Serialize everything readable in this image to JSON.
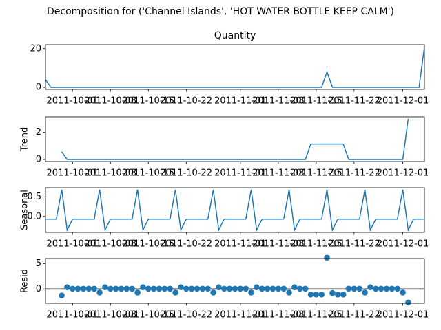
{
  "suptitle": "Decomposition for ('Channel Islands', 'HOT WATER BOTTLE KEEP CALM')",
  "chart_data": [
    {
      "type": "line",
      "title": "Quantity",
      "color": "#1f77b4",
      "x": [
        "2011-09-26",
        "2011-09-27",
        "2011-09-28",
        "2011-09-29",
        "2011-09-30",
        "2011-10-01",
        "2011-10-02",
        "2011-10-03",
        "2011-10-04",
        "2011-10-05",
        "2011-10-06",
        "2011-10-07",
        "2011-10-08",
        "2011-10-09",
        "2011-10-10",
        "2011-10-11",
        "2011-10-12",
        "2011-10-13",
        "2011-10-14",
        "2011-10-15",
        "2011-10-16",
        "2011-10-17",
        "2011-10-18",
        "2011-10-19",
        "2011-10-20",
        "2011-10-21",
        "2011-10-22",
        "2011-10-23",
        "2011-10-24",
        "2011-10-25",
        "2011-10-26",
        "2011-10-27",
        "2011-10-28",
        "2011-10-29",
        "2011-10-30",
        "2011-10-31",
        "2011-11-01",
        "2011-11-02",
        "2011-11-03",
        "2011-11-04",
        "2011-11-05",
        "2011-11-06",
        "2011-11-07",
        "2011-11-08",
        "2011-11-09",
        "2011-11-10",
        "2011-11-11",
        "2011-11-12",
        "2011-11-13",
        "2011-11-14",
        "2011-11-15",
        "2011-11-16",
        "2011-11-17",
        "2011-11-18",
        "2011-11-19",
        "2011-11-20",
        "2011-11-21",
        "2011-11-22",
        "2011-11-23",
        "2011-11-24",
        "2011-11-25",
        "2011-11-26",
        "2011-11-27",
        "2011-11-28",
        "2011-11-29",
        "2011-11-30",
        "2011-12-01",
        "2011-12-02",
        "2011-12-03",
        "2011-12-04",
        "2011-12-05"
      ],
      "values": [
        4,
        0,
        0,
        0,
        0,
        0,
        0,
        0,
        0,
        0,
        0,
        0,
        0,
        0,
        0,
        0,
        0,
        0,
        0,
        0,
        0,
        0,
        0,
        0,
        0,
        0,
        0,
        0,
        0,
        0,
        0,
        0,
        0,
        0,
        0,
        0,
        0,
        0,
        0,
        0,
        0,
        0,
        0,
        0,
        0,
        0,
        0,
        0,
        0,
        0,
        0,
        0,
        8,
        0,
        0,
        0,
        0,
        0,
        0,
        0,
        0,
        0,
        0,
        0,
        0,
        0,
        0,
        0,
        0,
        0,
        21
      ],
      "xlim": [
        "2011-09-26",
        "2011-12-05"
      ],
      "xticks": [
        "2011-10-01",
        "2011-10-08",
        "2011-10-15",
        "2011-10-22",
        "2011-11-01",
        "2011-11-08",
        "2011-11-15",
        "2011-11-22",
        "2011-12-01"
      ],
      "ylim": [
        -1.05,
        22.05
      ],
      "yticks": [
        0,
        20
      ]
    },
    {
      "type": "line",
      "ylabel": "Trend",
      "color": "#1f77b4",
      "values": [
        null,
        null,
        null,
        0.57,
        0,
        0,
        0,
        0,
        0,
        0,
        0,
        0,
        0,
        0,
        0,
        0,
        0,
        0,
        0,
        0,
        0,
        0,
        0,
        0,
        0,
        0,
        0,
        0,
        0,
        0,
        0,
        0,
        0,
        0,
        0,
        0,
        0,
        0,
        0,
        0,
        0,
        0,
        0,
        0,
        0,
        0,
        0,
        0,
        0,
        1.14,
        1.14,
        1.14,
        1.14,
        1.14,
        1.14,
        1.14,
        0,
        0,
        0,
        0,
        0,
        0,
        0,
        0,
        0,
        0,
        0,
        3,
        null,
        null,
        null
      ],
      "xlim": [
        "2011-09-26",
        "2011-12-05"
      ],
      "xticks": [
        "2011-10-01",
        "2011-10-08",
        "2011-10-15",
        "2011-10-22",
        "2011-11-01",
        "2011-11-08",
        "2011-11-15",
        "2011-11-22",
        "2011-12-01"
      ],
      "ylim": [
        -0.15,
        3.15
      ],
      "yticks": [
        0,
        2
      ]
    },
    {
      "type": "line",
      "ylabel": "Seasonal",
      "color": "#1f77b4",
      "values": [
        -0.07,
        -0.07,
        -0.07,
        0.69,
        -0.35,
        -0.07,
        -0.07,
        -0.07,
        -0.07,
        -0.07,
        0.69,
        -0.35,
        -0.07,
        -0.07,
        -0.07,
        -0.07,
        -0.07,
        0.69,
        -0.35,
        -0.07,
        -0.07,
        -0.07,
        -0.07,
        -0.07,
        0.69,
        -0.35,
        -0.07,
        -0.07,
        -0.07,
        -0.07,
        -0.07,
        0.69,
        -0.35,
        -0.07,
        -0.07,
        -0.07,
        -0.07,
        -0.07,
        0.69,
        -0.35,
        -0.07,
        -0.07,
        -0.07,
        -0.07,
        -0.07,
        0.69,
        -0.35,
        -0.07,
        -0.07,
        -0.07,
        -0.07,
        -0.07,
        0.69,
        -0.35,
        -0.07,
        -0.07,
        -0.07,
        -0.07,
        -0.07,
        0.69,
        -0.35,
        -0.07,
        -0.07,
        -0.07,
        -0.07,
        -0.07,
        0.69,
        -0.35,
        -0.07,
        -0.07,
        -0.07
      ],
      "xlim": [
        "2011-09-26",
        "2011-12-05"
      ],
      "xticks": [
        "2011-10-01",
        "2011-10-08",
        "2011-10-15",
        "2011-10-22",
        "2011-11-01",
        "2011-11-08",
        "2011-11-15",
        "2011-11-22",
        "2011-12-01"
      ],
      "ylim": [
        -0.41,
        0.74
      ],
      "yticks": [
        {
          "value": 0,
          "label": "0.0"
        },
        {
          "value": 0.5,
          "label": "0.5"
        }
      ]
    },
    {
      "type": "scatter",
      "ylabel": "Resid",
      "color": "#1f77b4",
      "hline": 0,
      "values": [
        null,
        null,
        null,
        -1.26,
        0.35,
        0.07,
        0.07,
        0.07,
        0.07,
        0.07,
        -0.69,
        0.35,
        0.07,
        0.07,
        0.07,
        0.07,
        0.07,
        -0.69,
        0.35,
        0.07,
        0.07,
        0.07,
        0.07,
        0.07,
        -0.69,
        0.35,
        0.07,
        0.07,
        0.07,
        0.07,
        0.07,
        -0.69,
        0.35,
        0.07,
        0.07,
        0.07,
        0.07,
        0.07,
        -0.69,
        0.35,
        0.07,
        0.07,
        0.07,
        0.07,
        0.07,
        -0.69,
        0.35,
        0.07,
        0.07,
        -1.08,
        -1.08,
        -1.08,
        6.17,
        -0.79,
        -1.08,
        -1.08,
        0.07,
        0.07,
        0.07,
        -0.69,
        0.35,
        0.07,
        0.07,
        0.07,
        0.07,
        0.07,
        -0.69,
        -2.65,
        null,
        null,
        null
      ],
      "xlim": [
        "2011-09-26",
        "2011-12-05"
      ],
      "xticks": [
        "2011-10-01",
        "2011-10-08",
        "2011-10-15",
        "2011-10-22",
        "2011-11-01",
        "2011-11-08",
        "2011-11-15",
        "2011-11-22",
        "2011-12-01"
      ],
      "ylim": [
        -2.8,
        6.0
      ],
      "yticks": [
        0,
        5
      ]
    }
  ]
}
